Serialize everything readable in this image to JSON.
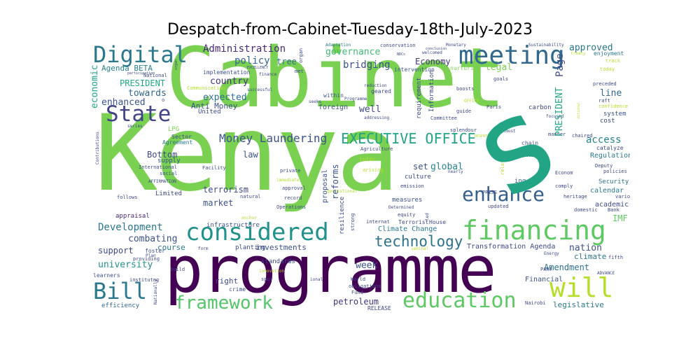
{
  "title": "Despatch-from-Cabinet-Tuesday-18th-July-2023",
  "words": [
    {
      "text": "Kenya",
      "color": "#7ad151"
    },
    {
      "text": "Cabinet",
      "color": "#7ad151"
    },
    {
      "text": "programme",
      "color": "#440154"
    },
    {
      "text": "meeting",
      "color": "#31688e"
    },
    {
      "text": "Digital",
      "color": "#2a788e"
    },
    {
      "text": "State",
      "color": "#414487"
    },
    {
      "text": "financing",
      "color": "#5ec962"
    },
    {
      "text": "considered",
      "color": "#21918c"
    },
    {
      "text": "enhance",
      "color": "#355f8d"
    },
    {
      "text": "will",
      "color": "#b5de2b"
    },
    {
      "text": "Bill",
      "color": "#2a788e"
    },
    {
      "text": "education",
      "color": "#5ec962"
    },
    {
      "text": "framework",
      "color": "#54c568"
    },
    {
      "text": "EXECUTIVE OFFICE",
      "color": "#20a486"
    },
    {
      "text": "technology",
      "color": "#2c728e"
    },
    {
      "text": "Money Laundering",
      "color": "#3b528b"
    },
    {
      "text": "Development",
      "color": "#2a788e"
    },
    {
      "text": "Administration",
      "color": "#482878"
    },
    {
      "text": "governance",
      "color": "#3fbc73"
    },
    {
      "text": "policy",
      "color": "#31688e"
    },
    {
      "text": "tree",
      "color": "#2c728e"
    },
    {
      "text": "Economy",
      "color": "#46337e"
    },
    {
      "text": "bridging",
      "color": "#3b528b"
    },
    {
      "text": "approved",
      "color": "#2a788e"
    },
    {
      "text": "Agenda BETA",
      "color": "#26828e"
    },
    {
      "text": "PRESIDENT",
      "color": "#22a884"
    },
    {
      "text": "towards",
      "color": "#31688e"
    },
    {
      "text": "country",
      "color": "#46337e"
    },
    {
      "text": "expected",
      "color": "#2c728e"
    },
    {
      "text": "Anti Money",
      "color": "#3b528b"
    },
    {
      "text": "enhanced",
      "color": "#3b528b"
    },
    {
      "text": "economic",
      "color": "#20a486"
    },
    {
      "text": "well",
      "color": "#3e4989"
    },
    {
      "text": "legal",
      "color": "#7ad151"
    },
    {
      "text": "Page",
      "color": "#3e4989"
    },
    {
      "text": "line",
      "color": "#31688e"
    },
    {
      "text": "access",
      "color": "#25848e"
    },
    {
      "text": "Regulation",
      "color": "#2a788e"
    },
    {
      "text": "Bottom",
      "color": "#3e4989"
    },
    {
      "text": "law",
      "color": "#3b528b"
    },
    {
      "text": "terrorism",
      "color": "#3e4989"
    },
    {
      "text": "market",
      "color": "#3b528b"
    },
    {
      "text": "global",
      "color": "#25848e"
    },
    {
      "text": "set",
      "color": "#3b528b"
    },
    {
      "text": "reforms",
      "color": "#3b528b"
    },
    {
      "text": "combating",
      "color": "#3b528b"
    },
    {
      "text": "support",
      "color": "#3e4989"
    },
    {
      "text": "course",
      "color": "#2a788e"
    },
    {
      "text": "investments",
      "color": "#3b528b"
    },
    {
      "text": "university",
      "color": "#21918c"
    },
    {
      "text": "Climate Change",
      "color": "#2a788e"
    },
    {
      "text": "week",
      "color": "#3b528b"
    },
    {
      "text": "nation",
      "color": "#3b528b"
    },
    {
      "text": "climate",
      "color": "#2a788e"
    },
    {
      "text": "Amendment",
      "color": "#2c728e"
    },
    {
      "text": "Transformation Agenda",
      "color": "#3e4989"
    },
    {
      "text": "IMF",
      "color": "#5ec962"
    },
    {
      "text": "Security",
      "color": "#2a788e"
    },
    {
      "text": "calendar",
      "color": "#2a788e"
    },
    {
      "text": "academic",
      "color": "#3e4989"
    },
    {
      "text": "Financial",
      "color": "#3b528b"
    },
    {
      "text": "legislative",
      "color": "#2a788e"
    },
    {
      "text": "right",
      "color": "#3e4989"
    },
    {
      "text": "petroleum",
      "color": "#46337e"
    },
    {
      "text": "efficiency",
      "color": "#31688e"
    },
    {
      "text": "system",
      "color": "#3b528b"
    },
    {
      "text": "cost",
      "color": "#3e4989"
    },
    {
      "text": "carbon",
      "color": "#3e4989"
    },
    {
      "text": "United",
      "color": "#3e4989"
    },
    {
      "text": "Agreement",
      "color": "#2a788e"
    },
    {
      "text": "supply",
      "color": "#3b528b"
    },
    {
      "text": "chain",
      "color": "#3b528b"
    },
    {
      "text": "implementation",
      "color": "#3b528b"
    },
    {
      "text": "Limited",
      "color": "#3e4989"
    },
    {
      "text": "appraisal",
      "color": "#482878"
    },
    {
      "text": "infrastructure",
      "color": "#3b528b"
    },
    {
      "text": "Terrorist",
      "color": "#3e4989"
    },
    {
      "text": "House",
      "color": "#3e4989"
    },
    {
      "text": "measures",
      "color": "#3b528b"
    },
    {
      "text": "culture",
      "color": "#3e4989"
    },
    {
      "text": "resilience",
      "color": "#3e4989"
    },
    {
      "text": "proposal",
      "color": "#3b528b"
    },
    {
      "text": "foreign",
      "color": "#3b528b"
    },
    {
      "text": "within",
      "color": "#3b528b"
    },
    {
      "text": "Information",
      "color": "#3e4989"
    },
    {
      "text": "requirement",
      "color": "#3e4989"
    },
    {
      "text": "crime",
      "color": "#3e4989"
    },
    {
      "text": "planting",
      "color": "#3e4989"
    },
    {
      "text": "standards",
      "color": "#3e4989"
    },
    {
      "text": "RELEASE",
      "color": "#3e4989"
    },
    {
      "text": "LPG",
      "color": "#7ad151"
    },
    {
      "text": "Sector",
      "color": "#3e4989"
    },
    {
      "text": "International",
      "color": "#3e4989"
    },
    {
      "text": "social",
      "color": "#3b528b"
    },
    {
      "text": "foster",
      "color": "#3b528b"
    },
    {
      "text": "learners",
      "color": "#3b528b"
    },
    {
      "text": "PRESS",
      "color": "#3e4989"
    },
    {
      "text": "Nairobi",
      "color": "#3e4989"
    },
    {
      "text": "Deputy",
      "color": "#3e4989"
    },
    {
      "text": "policies",
      "color": "#3e4989"
    },
    {
      "text": "catalyze",
      "color": "#3e4989"
    },
    {
      "text": "heritage",
      "color": "#3e4989"
    },
    {
      "text": "various",
      "color": "#3e4989"
    },
    {
      "text": "domestic",
      "color": "#3e4989"
    },
    {
      "text": "Bank",
      "color": "#3e4989"
    },
    {
      "text": "updated",
      "color": "#3e4989"
    },
    {
      "text": "comply",
      "color": "#3e4989"
    },
    {
      "text": "Econom",
      "color": "#3e4989"
    },
    {
      "text": "ing",
      "color": "#3b528b"
    },
    {
      "text": "chaired",
      "color": "#3e4989"
    },
    {
      "text": "manner",
      "color": "#3e4989"
    },
    {
      "text": "PART",
      "color": "#3e4989"
    },
    {
      "text": "Energy",
      "color": "#3e4989"
    },
    {
      "text": "fifth",
      "color": "#3e4989"
    },
    {
      "text": "ADVANCE",
      "color": "#3e4989"
    },
    {
      "text": "nurturing",
      "color": "#7ad151"
    },
    {
      "text": "intervention",
      "color": "#3b528b"
    },
    {
      "text": "conservation",
      "color": "#3e4989"
    },
    {
      "text": "Adaptation",
      "color": "#2a788e"
    },
    {
      "text": "Monetary",
      "color": "#3e4989"
    },
    {
      "text": "Sustainability",
      "color": "#3e4989"
    },
    {
      "text": "enjoyment",
      "color": "#2a788e"
    },
    {
      "text": "today",
      "color": "#b5de2b"
    },
    {
      "text": "preceded",
      "color": "#3e4989"
    },
    {
      "text": "raft",
      "color": "#3e4989"
    },
    {
      "text": "confidence",
      "color": "#b5de2b"
    },
    {
      "text": "Committee",
      "color": "#3e4989"
    },
    {
      "text": "guide",
      "color": "#3e4989"
    },
    {
      "text": "boosts",
      "color": "#3e4989"
    },
    {
      "text": "Paris",
      "color": "#3e4989"
    },
    {
      "text": "splendour",
      "color": "#3e4989"
    },
    {
      "text": "Agriculture",
      "color": "#3e4989"
    },
    {
      "text": "private",
      "color": "#3e4989"
    },
    {
      "text": "approval",
      "color": "#3e4989"
    },
    {
      "text": "record",
      "color": "#3e4989"
    },
    {
      "text": "Operations",
      "color": "#3e4989"
    },
    {
      "text": "natural",
      "color": "#3e4989"
    },
    {
      "text": "Facility",
      "color": "#3e4989"
    },
    {
      "text": "follows",
      "color": "#3e4989"
    },
    {
      "text": "institutng",
      "color": "#3e4989"
    },
    {
      "text": "providing",
      "color": "#3e4989"
    },
    {
      "text": "Plan",
      "color": "#3e4989"
    },
    {
      "text": "build",
      "color": "#3e4989"
    },
    {
      "text": "spur",
      "color": "#3e4989"
    },
    {
      "text": "World",
      "color": "#3e4989"
    },
    {
      "text": "obligations",
      "color": "#3e4989"
    },
    {
      "text": "Fund",
      "color": "#3e4989"
    },
    {
      "text": "strong",
      "color": "#3e4989"
    },
    {
      "text": "emission",
      "color": "#3e4989"
    },
    {
      "text": "equity",
      "color": "#3e4989"
    },
    {
      "text": "Communication",
      "color": "#b5de2b"
    },
    {
      "text": "successful",
      "color": "#3e4989"
    },
    {
      "text": "seeks",
      "color": "#3e4989"
    },
    {
      "text": "met",
      "color": "#3e4989"
    },
    {
      "text": "National",
      "color": "#3e4989"
    },
    {
      "text": "finance",
      "color": "#3e4989"
    },
    {
      "text": "participation",
      "color": "#3e4989"
    },
    {
      "text": "reduction",
      "color": "#3e4989"
    },
    {
      "text": "geared",
      "color": "#3e4989"
    },
    {
      "text": "addressing",
      "color": "#3e4989"
    },
    {
      "text": "welcomed",
      "color": "#3e4989"
    },
    {
      "text": "conclusion",
      "color": "#3e4989"
    },
    {
      "text": "NDCs",
      "color": "#3e4989"
    },
    {
      "text": "EXCELLENCY",
      "color": "#3e4989"
    },
    {
      "text": "series",
      "color": "#3e4989"
    },
    {
      "text": "Contributions",
      "color": "#3e4989"
    },
    {
      "text": "AFFIRMATION",
      "color": "#3e4989"
    },
    {
      "text": "Nationally",
      "color": "#3e4989"
    },
    {
      "text": "Programme",
      "color": "#3e4989"
    },
    {
      "text": "arising",
      "color": "#b5de2b"
    },
    {
      "text": "inter",
      "color": "#b5de2b"
    },
    {
      "text": "immediate",
      "color": "#b5de2b"
    },
    {
      "text": "anchor",
      "color": "#b5de2b"
    },
    {
      "text": "DESPATCH",
      "color": "#b5de2b"
    },
    {
      "text": "ic",
      "color": "#3e4989"
    },
    {
      "text": "OFFICE",
      "color": "#b5de2b"
    },
    {
      "text": "goals",
      "color": "#3e4989"
    },
    {
      "text": "treaty",
      "color": "#b5de2b"
    },
    {
      "text": "organ",
      "color": "#3e4989"
    },
    {
      "text": "nearly",
      "color": "#3e4989"
    },
    {
      "text": "related",
      "color": "#b5de2b"
    },
    {
      "text": "challenges",
      "color": "#3e4989"
    },
    {
      "text": "seminal",
      "color": "#b5de2b"
    },
    {
      "text": "Determined",
      "color": "#3e4989"
    },
    {
      "text": "generational",
      "color": "#b5de2b"
    },
    {
      "text": "internat",
      "color": "#3e4989"
    },
    {
      "text": "led",
      "color": "#3e4989"
    },
    {
      "text": "focused",
      "color": "#3e4989"
    },
    {
      "text": "form",
      "color": "#3e4989"
    },
    {
      "text": "innovation",
      "color": "#b5de2b"
    },
    {
      "text": "ional",
      "color": "#3e4989"
    },
    {
      "text": "ditional",
      "color": "#b5de2b"
    },
    {
      "text": "almost",
      "color": "#3e4989"
    },
    {
      "text": "track",
      "color": "#b5de2b"
    },
    {
      "text": "o",
      "color": "#3e4989"
    },
    {
      "text": "C",
      "color": "#3e4989"
    }
  ]
}
